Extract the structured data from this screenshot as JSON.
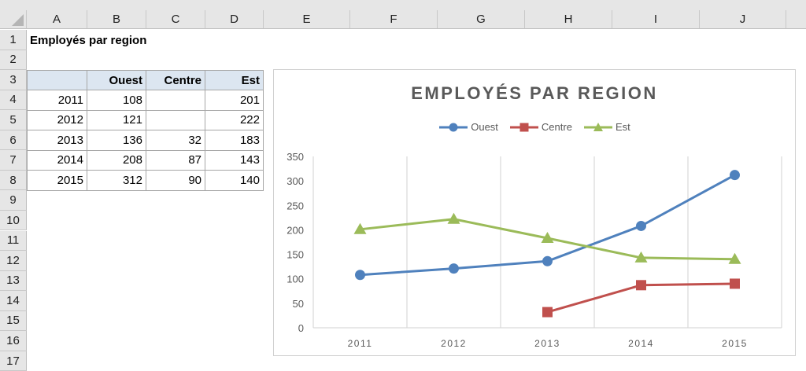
{
  "spreadsheet": {
    "columns": [
      "A",
      "B",
      "C",
      "D",
      "E",
      "F",
      "G",
      "H",
      "I",
      "J"
    ],
    "rows": [
      "1",
      "2",
      "3",
      "4",
      "5",
      "6",
      "7",
      "8",
      "9",
      "10",
      "11",
      "12",
      "13",
      "14",
      "15",
      "16",
      "17"
    ],
    "title_cell": "Employés par region",
    "table": {
      "headers": [
        "",
        "Ouest",
        "Centre",
        "Est"
      ],
      "rows": [
        [
          "2011",
          "108",
          "",
          "201"
        ],
        [
          "2012",
          "121",
          "",
          "222"
        ],
        [
          "2013",
          "136",
          "32",
          "183"
        ],
        [
          "2014",
          "208",
          "87",
          "143"
        ],
        [
          "2015",
          "312",
          "90",
          "140"
        ]
      ]
    }
  },
  "colors": {
    "ouest": "#4f81bd",
    "centre": "#c0504d",
    "est": "#9bbb59",
    "header_fill": "#dce6f1"
  },
  "chart_data": {
    "type": "line",
    "title": "EMPLOYÉS PAR REGION",
    "categories": [
      "2011",
      "2012",
      "2013",
      "2014",
      "2015"
    ],
    "series": [
      {
        "name": "Ouest",
        "marker": "circle",
        "color": "#4f81bd",
        "values": [
          108,
          121,
          136,
          208,
          312
        ]
      },
      {
        "name": "Centre",
        "marker": "square",
        "color": "#c0504d",
        "values": [
          null,
          null,
          32,
          87,
          90
        ]
      },
      {
        "name": "Est",
        "marker": "triangle",
        "color": "#9bbb59",
        "values": [
          201,
          222,
          183,
          143,
          140
        ]
      }
    ],
    "yticks": [
      0,
      50,
      100,
      150,
      200,
      250,
      300,
      350
    ],
    "ylim": [
      0,
      350
    ],
    "xlabel": "",
    "ylabel": "",
    "legend_position": "top",
    "grid": "vertical category gridlines"
  }
}
